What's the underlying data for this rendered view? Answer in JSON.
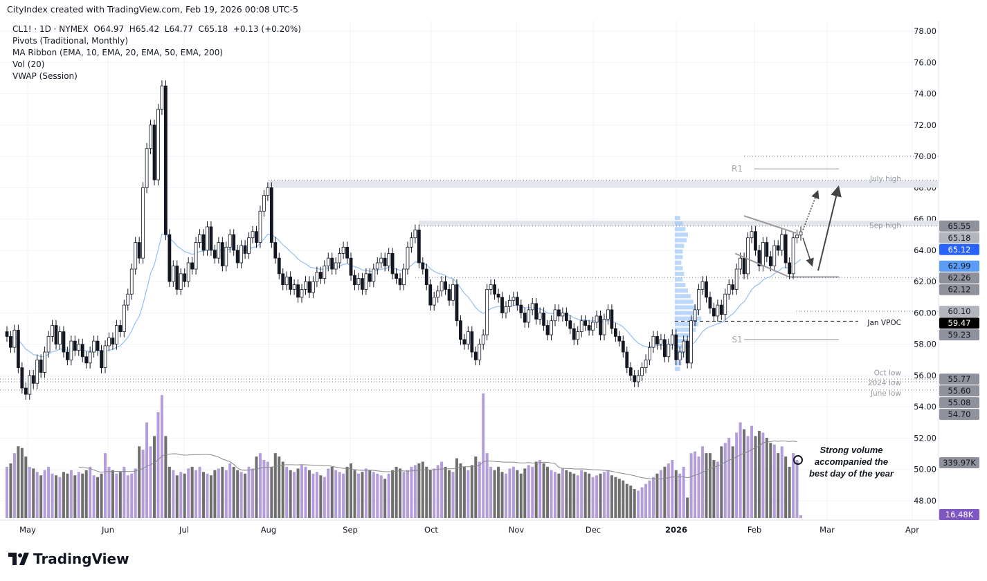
{
  "credit": "CityIndex created with TradingView.com, Feb 19, 2026 00:08 UTC-5",
  "legend": {
    "symbol_line": "CL1! · 1D · NYMEX  O64.97  H65.42  L64.77  C65.18  +0.13 (+0.20%)",
    "indicators": [
      "Pivots (Traditional, Monthly)",
      "MA Ribbon (EMA, 10, EMA, 20, EMA, 50, EMA, 200)",
      "Vol (20)",
      "VWAP (Session)"
    ]
  },
  "logo": "TradingView",
  "annotation": "Strong volume accompanied the best day of the year",
  "colors": {
    "up_volume": "#b39ddb",
    "down_volume": "#6f6f6f",
    "ema": "#90bff9",
    "candle": "#131722",
    "zone": "#e4e6ec",
    "accent_blue": "#2962ff",
    "volume_tag": "#7e57c2"
  },
  "chart_data": {
    "type": "candlestick",
    "ylim": [
      48,
      78
    ],
    "y_ticks": [
      78,
      76,
      74,
      72,
      70,
      68,
      66,
      64,
      62,
      60,
      58,
      56,
      54,
      52,
      50,
      48
    ],
    "x_ticks": [
      "May",
      "Jun",
      "Jul",
      "Aug",
      "Sep",
      "Oct",
      "Nov",
      "Dec",
      "2026",
      "Feb",
      "Mar",
      "Apr"
    ],
    "grid": true,
    "closes": [
      58.5,
      57.8,
      58.9,
      56.5,
      55.2,
      54.8,
      56.0,
      55.5,
      57.0,
      56.2,
      57.5,
      58.5,
      59.2,
      58.0,
      58.8,
      57.5,
      57.0,
      58.2,
      57.6,
      58.0,
      57.2,
      56.8,
      57.5,
      58.2,
      57.6,
      56.5,
      57.9,
      58.4,
      58.0,
      59.2,
      58.8,
      60.5,
      61.2,
      62.8,
      64.5,
      63.5,
      68.0,
      70.5,
      72.0,
      68.5,
      73.0,
      74.5,
      65.0,
      62.0,
      63.0,
      61.5,
      62.5,
      62.0,
      63.2,
      62.8,
      64.5,
      65.0,
      64.0,
      65.5,
      64.0,
      63.5,
      64.5,
      63.0,
      64.2,
      65.0,
      64.0,
      63.2,
      64.3,
      63.8,
      64.8,
      65.2,
      64.5,
      66.5,
      67.5,
      68.0,
      64.5,
      63.5,
      62.5,
      61.8,
      62.3,
      61.5,
      61.8,
      61.0,
      61.5,
      62.0,
      61.3,
      62.0,
      62.6,
      62.2,
      63.0,
      63.5,
      62.8,
      63.2,
      63.8,
      64.2,
      63.5,
      62.4,
      61.8,
      62.2,
      61.5,
      62.5,
      62.0,
      62.8,
      63.2,
      63.5,
      63.0,
      63.8,
      62.5,
      62.2,
      61.8,
      62.8,
      64.2,
      64.8,
      65.3,
      63.2,
      62.8,
      61.8,
      60.5,
      61.0,
      61.4,
      62.0,
      61.5,
      60.8,
      61.8,
      59.5,
      58.3,
      58.0,
      58.8,
      57.5,
      57.0,
      58.0,
      58.6,
      61.5,
      61.8,
      61.2,
      61.0,
      60.0,
      60.4,
      60.8,
      61.0,
      60.5,
      60.0,
      59.4,
      60.2,
      60.6,
      59.6,
      60.0,
      59.2,
      58.6,
      59.5,
      60.2,
      59.8,
      60.0,
      59.5,
      59.0,
      58.3,
      58.8,
      59.5,
      59.2,
      58.9,
      59.4,
      59.8,
      58.6,
      59.6,
      60.2,
      59.0,
      58.5,
      58.2,
      57.5,
      56.5,
      56.0,
      55.6,
      56.0,
      56.5,
      57.0,
      57.8,
      58.5,
      58.0,
      58.3,
      57.2,
      58.0,
      58.6,
      57.0,
      57.5,
      58.2,
      56.8,
      59.5,
      60.2,
      61.5,
      62.0,
      61.0,
      60.3,
      59.8,
      60.5,
      59.9,
      61.2,
      61.8,
      61.5,
      62.8,
      63.5,
      62.5,
      64.8,
      65.2,
      64.0,
      63.0,
      64.5,
      63.6,
      63.0,
      64.3,
      64.0,
      65.0,
      63.2,
      62.5,
      64.8,
      64.97,
      65.18
    ],
    "volume_k": [
      300,
      320,
      380,
      420,
      410,
      360,
      300,
      290,
      270,
      250,
      280,
      300,
      260,
      250,
      240,
      270,
      260,
      280,
      250,
      270,
      260,
      280,
      300,
      250,
      240,
      260,
      380,
      300,
      280,
      260,
      270,
      300,
      250,
      260,
      290,
      420,
      400,
      560,
      420,
      480,
      620,
      720,
      480,
      300,
      280,
      250,
      270,
      260,
      290,
      300,
      280,
      300,
      270,
      260,
      250,
      280,
      290,
      300,
      280,
      320,
      300,
      280,
      270,
      260,
      300,
      290,
      360,
      380,
      340,
      330,
      300,
      380,
      360,
      330,
      300,
      280,
      270,
      290,
      310,
      300,
      280,
      260,
      270,
      250,
      240,
      290,
      300,
      280,
      270,
      260,
      300,
      320,
      280,
      260,
      270,
      290,
      280,
      270,
      260,
      250,
      230,
      260,
      280,
      300,
      290,
      270,
      280,
      300,
      310,
      320,
      330,
      300,
      280,
      290,
      310,
      330,
      300,
      280,
      270,
      350,
      320,
      300,
      280,
      310,
      360,
      330,
      730,
      380,
      300,
      280,
      300,
      270,
      260,
      290,
      300,
      280,
      260,
      290,
      310,
      300,
      330,
      340,
      320,
      300,
      280,
      270,
      260,
      290,
      280,
      270,
      260,
      250,
      280,
      270,
      260,
      240,
      250,
      260,
      270,
      280,
      250,
      240,
      230,
      220,
      200,
      190,
      170,
      160,
      180,
      200,
      220,
      240,
      260,
      280,
      300,
      320,
      340,
      280,
      260,
      300,
      120,
      380,
      390,
      360,
      420,
      380,
      380,
      340,
      330,
      420,
      440,
      470,
      420,
      500,
      560,
      520,
      480,
      540,
      480,
      510,
      500,
      470,
      440,
      430,
      380,
      420,
      360,
      300,
      380,
      339.97,
      16.48
    ],
    "levels": [
      {
        "label": "July high",
        "price": 68.47,
        "style": "zone"
      },
      {
        "label": "Sep high",
        "price": 65.55,
        "style": "zone"
      },
      {
        "label": "R1",
        "price": 69.2,
        "style": "pivot"
      },
      {
        "label": "S1",
        "price": 58.3,
        "style": "pivot"
      },
      {
        "label": "Jan VPOC",
        "price": 59.47,
        "style": "dashed"
      },
      {
        "label": "Oct low",
        "price": 55.77,
        "style": "dotted"
      },
      {
        "label": "2024 low",
        "price": 55.6,
        "style": "dotted"
      },
      {
        "label": "June low",
        "price": 55.08,
        "style": "dotted"
      }
    ],
    "price_tags": [
      {
        "value": "65.55",
        "price": 65.55,
        "color": "#8f929c",
        "text": "#131722"
      },
      {
        "value": "65.18",
        "price": 65.18,
        "color": "#b2b5be",
        "text": "#131722"
      },
      {
        "value": "65.12",
        "price": 64.75,
        "color": "#2962ff",
        "text": "#ffffff"
      },
      {
        "value": "62.99",
        "price": 62.99,
        "color": "#5b9cf6",
        "text": "#131722"
      },
      {
        "value": "62.26",
        "price": 62.35,
        "color": "#8f929c",
        "text": "#131722"
      },
      {
        "value": "62.12",
        "price": 61.85,
        "color": "#8f929c",
        "text": "#131722"
      },
      {
        "value": "60.10",
        "price": 60.1,
        "color": "#b2b5be",
        "text": "#131722"
      },
      {
        "value": "59.47",
        "price": 59.47,
        "color": "#000000",
        "text": "#ffffff"
      },
      {
        "value": "59.23",
        "price": 58.95,
        "color": "#8f929c",
        "text": "#131722"
      },
      {
        "value": "55.77",
        "price": 55.77,
        "color": "#8f929c",
        "text": "#131722"
      },
      {
        "value": "55.60",
        "price": 55.3,
        "color": "#8f929c",
        "text": "#131722"
      },
      {
        "value": "55.08",
        "price": 54.83,
        "color": "#8f929c",
        "text": "#131722"
      },
      {
        "value": "54.70",
        "price": 54.36,
        "color": "#8f929c",
        "text": "#131722"
      }
    ],
    "volume_tags": [
      {
        "value": "339.97K",
        "vol": 339.97,
        "color": "#8f929c",
        "text": "#131722"
      },
      {
        "value": "16.48K",
        "vol": 16.48,
        "color": "#7e57c2",
        "text": "#ffffff"
      }
    ],
    "volume_profile": [
      0.2,
      0.3,
      0.4,
      0.5,
      0.45,
      0.35,
      0.3,
      0.3,
      0.25,
      0.3,
      0.35,
      0.3,
      0.4,
      0.5,
      0.6,
      0.7,
      0.8,
      0.9,
      1.0,
      0.9,
      0.8,
      0.6,
      0.5,
      0.4,
      0.35,
      0.3,
      0.25,
      0.2
    ]
  }
}
